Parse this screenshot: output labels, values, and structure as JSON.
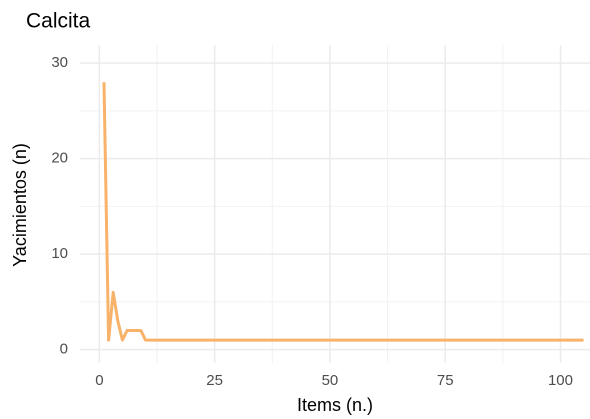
{
  "chart_data": {
    "type": "line",
    "title": "Calcita",
    "xlabel": "Items (n.)",
    "ylabel": "Yacimientos (n)",
    "x": [
      1,
      2,
      3,
      4,
      5,
      6,
      7,
      8,
      9,
      10,
      11,
      12,
      13,
      14,
      15,
      16,
      17,
      18,
      19,
      20,
      21,
      22,
      23,
      24,
      25,
      26,
      27,
      28,
      29,
      30,
      31,
      32,
      33,
      34,
      35,
      36,
      37,
      38,
      39,
      40,
      41,
      42,
      43,
      44,
      45,
      46,
      47,
      48,
      49,
      50,
      51,
      52,
      53,
      54,
      55,
      56,
      57,
      58,
      59,
      60,
      61,
      62,
      63,
      64,
      65,
      66,
      67,
      68,
      69,
      70,
      71,
      72,
      73,
      74,
      75,
      76,
      77,
      78,
      79,
      80,
      81,
      82,
      83,
      84,
      85,
      86,
      87,
      88,
      89,
      90,
      91,
      92,
      93,
      94,
      95,
      96,
      97,
      98,
      99,
      100,
      101,
      102,
      103,
      104,
      105
    ],
    "series": [
      {
        "color": "#f8b26a",
        "values": [
          28,
          1,
          6,
          3,
          1,
          2,
          2,
          2,
          2,
          1,
          1,
          1,
          1,
          1,
          1,
          1,
          1,
          1,
          1,
          1,
          1,
          1,
          1,
          1,
          1,
          1,
          1,
          1,
          1,
          1,
          1,
          1,
          1,
          1,
          1,
          1,
          1,
          1,
          1,
          1,
          1,
          1,
          1,
          1,
          1,
          1,
          1,
          1,
          1,
          1,
          1,
          1,
          1,
          1,
          1,
          1,
          1,
          1,
          1,
          1,
          1,
          1,
          1,
          1,
          1,
          1,
          1,
          1,
          1,
          1,
          1,
          1,
          1,
          1,
          1,
          1,
          1,
          1,
          1,
          1,
          1,
          1,
          1,
          1,
          1,
          1,
          1,
          1,
          1,
          1,
          1,
          1,
          1,
          1,
          1,
          1,
          1,
          1,
          1,
          1,
          1,
          1,
          1,
          1,
          1
        ]
      }
    ],
    "xlim": [
      -4.2,
      106.4
    ],
    "ylim": [
      -1.4,
      31.9
    ],
    "xticks": [
      0,
      25,
      50,
      75,
      100
    ],
    "yticks": [
      0,
      10,
      20,
      30
    ],
    "xminor": [
      12.5,
      37.5,
      62.5,
      87.5
    ],
    "yminor": [
      5,
      15,
      25
    ],
    "grid": true
  }
}
